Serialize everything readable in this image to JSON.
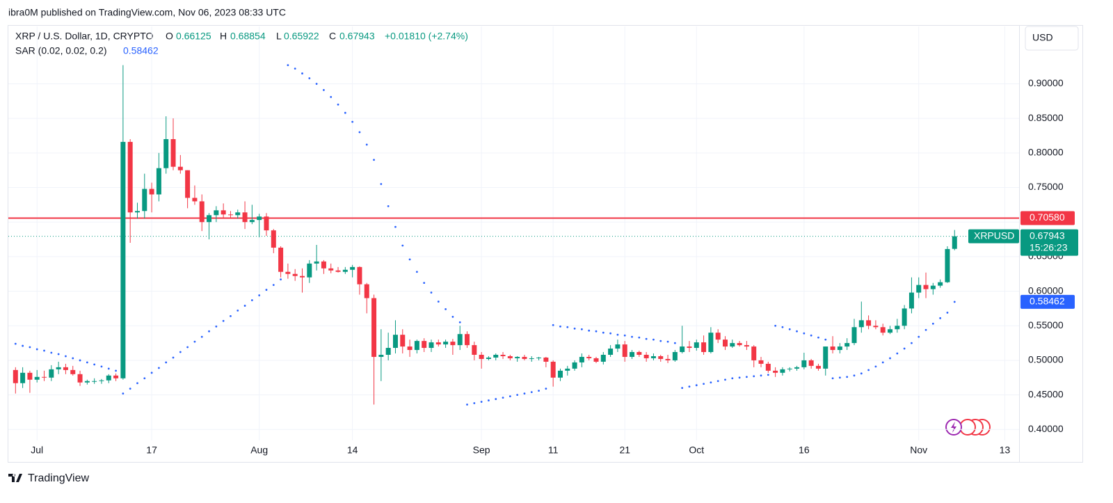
{
  "publisher": "ibra0M published on TradingView.com, Nov 06, 2023 08:33 UTC",
  "footer": "TradingView",
  "chart_data": {
    "type": "candlestick",
    "title": "XRP / U.S. Dollar, 1D, CRYPTO",
    "ohlc_labels": [
      "O",
      "H",
      "L",
      "C"
    ],
    "change": "+0.01810 (+2.74%)",
    "currency": "USD",
    "symbol": "XRPUSD",
    "countdown": "15:26:23",
    "up_color": "#089981",
    "down_color": "#f23645",
    "grid": true,
    "xlim": [
      "2023-06-27",
      "2023-11-15"
    ],
    "ylim": [
      0.352,
      0.983
    ],
    "yticks": [
      {
        "value": 0.4,
        "label": "0.40000"
      },
      {
        "value": 0.45,
        "label": "0.45000"
      },
      {
        "value": 0.5,
        "label": "0.50000"
      },
      {
        "value": 0.55,
        "label": "0.55000"
      },
      {
        "value": 0.6,
        "label": "0.60000"
      },
      {
        "value": 0.65,
        "label": "0.65000"
      },
      {
        "value": 0.7,
        "label": "0.70000"
      },
      {
        "value": 0.75,
        "label": "0.75000"
      },
      {
        "value": 0.8,
        "label": "0.80000"
      },
      {
        "value": 0.85,
        "label": "0.85000"
      },
      {
        "value": 0.9,
        "label": "0.90000"
      }
    ],
    "xticks": [
      {
        "value": "2023-07-01",
        "label": "Jul"
      },
      {
        "value": "2023-07-17",
        "label": "17"
      },
      {
        "value": "2023-08-01",
        "label": "Aug"
      },
      {
        "value": "2023-08-14",
        "label": "14"
      },
      {
        "value": "2023-09-01",
        "label": "Sep"
      },
      {
        "value": "2023-09-11",
        "label": "11"
      },
      {
        "value": "2023-09-21",
        "label": "21"
      },
      {
        "value": "2023-10-01",
        "label": "Oct"
      },
      {
        "value": "2023-10-16",
        "label": "16"
      },
      {
        "value": "2023-11-01",
        "label": "Nov"
      },
      {
        "value": "2023-11-13",
        "label": "13"
      }
    ],
    "levels": [
      {
        "value": 0.7058,
        "label": "0.70580",
        "color": "#f23645"
      }
    ],
    "x": [
      "2023-06-28",
      "2023-06-29",
      "2023-06-30",
      "2023-07-01",
      "2023-07-02",
      "2023-07-03",
      "2023-07-04",
      "2023-07-05",
      "2023-07-06",
      "2023-07-07",
      "2023-07-08",
      "2023-07-09",
      "2023-07-10",
      "2023-07-11",
      "2023-07-12",
      "2023-07-13",
      "2023-07-14",
      "2023-07-15",
      "2023-07-16",
      "2023-07-17",
      "2023-07-18",
      "2023-07-19",
      "2023-07-20",
      "2023-07-21",
      "2023-07-22",
      "2023-07-23",
      "2023-07-24",
      "2023-07-25",
      "2023-07-26",
      "2023-07-27",
      "2023-07-28",
      "2023-07-29",
      "2023-07-30",
      "2023-07-31",
      "2023-08-01",
      "2023-08-02",
      "2023-08-03",
      "2023-08-04",
      "2023-08-05",
      "2023-08-06",
      "2023-08-07",
      "2023-08-08",
      "2023-08-09",
      "2023-08-10",
      "2023-08-11",
      "2023-08-12",
      "2023-08-13",
      "2023-08-14",
      "2023-08-15",
      "2023-08-16",
      "2023-08-17",
      "2023-08-18",
      "2023-08-19",
      "2023-08-20",
      "2023-08-21",
      "2023-08-22",
      "2023-08-23",
      "2023-08-24",
      "2023-08-25",
      "2023-08-26",
      "2023-08-27",
      "2023-08-28",
      "2023-08-29",
      "2023-08-30",
      "2023-08-31",
      "2023-09-01",
      "2023-09-02",
      "2023-09-03",
      "2023-09-04",
      "2023-09-05",
      "2023-09-06",
      "2023-09-07",
      "2023-09-08",
      "2023-09-09",
      "2023-09-10",
      "2023-09-11",
      "2023-09-12",
      "2023-09-13",
      "2023-09-14",
      "2023-09-15",
      "2023-09-16",
      "2023-09-17",
      "2023-09-18",
      "2023-09-19",
      "2023-09-20",
      "2023-09-21",
      "2023-09-22",
      "2023-09-23",
      "2023-09-24",
      "2023-09-25",
      "2023-09-26",
      "2023-09-27",
      "2023-09-28",
      "2023-09-29",
      "2023-09-30",
      "2023-10-01",
      "2023-10-02",
      "2023-10-03",
      "2023-10-04",
      "2023-10-05",
      "2023-10-06",
      "2023-10-07",
      "2023-10-08",
      "2023-10-09",
      "2023-10-10",
      "2023-10-11",
      "2023-10-12",
      "2023-10-13",
      "2023-10-14",
      "2023-10-15",
      "2023-10-16",
      "2023-10-17",
      "2023-10-18",
      "2023-10-19",
      "2023-10-20",
      "2023-10-21",
      "2023-10-22",
      "2023-10-23",
      "2023-10-24",
      "2023-10-25",
      "2023-10-26",
      "2023-10-27",
      "2023-10-28",
      "2023-10-29",
      "2023-10-30",
      "2023-10-31",
      "2023-11-01",
      "2023-11-02",
      "2023-11-03",
      "2023-11-04",
      "2023-11-05",
      "2023-11-06"
    ],
    "ohlc": [
      [
        0.486,
        0.49,
        0.452,
        0.467
      ],
      [
        0.467,
        0.49,
        0.46,
        0.482
      ],
      [
        0.482,
        0.485,
        0.453,
        0.472
      ],
      [
        0.472,
        0.486,
        0.468,
        0.476
      ],
      [
        0.476,
        0.485,
        0.47,
        0.475
      ],
      [
        0.475,
        0.493,
        0.47,
        0.487
      ],
      [
        0.487,
        0.498,
        0.48,
        0.49
      ],
      [
        0.49,
        0.495,
        0.48,
        0.486
      ],
      [
        0.486,
        0.492,
        0.478,
        0.48
      ],
      [
        0.48,
        0.485,
        0.463,
        0.468
      ],
      [
        0.468,
        0.472,
        0.465,
        0.47
      ],
      [
        0.47,
        0.474,
        0.466,
        0.47
      ],
      [
        0.47,
        0.473,
        0.466,
        0.471
      ],
      [
        0.471,
        0.48,
        0.467,
        0.478
      ],
      [
        0.478,
        0.481,
        0.47,
        0.474
      ],
      [
        0.474,
        0.927,
        0.472,
        0.816
      ],
      [
        0.816,
        0.82,
        0.67,
        0.714
      ],
      [
        0.714,
        0.728,
        0.705,
        0.716
      ],
      [
        0.716,
        0.77,
        0.705,
        0.748
      ],
      [
        0.748,
        0.757,
        0.714,
        0.74
      ],
      [
        0.74,
        0.8,
        0.73,
        0.778
      ],
      [
        0.778,
        0.853,
        0.77,
        0.82
      ],
      [
        0.82,
        0.85,
        0.775,
        0.78
      ],
      [
        0.78,
        0.797,
        0.77,
        0.775
      ],
      [
        0.775,
        0.775,
        0.72,
        0.735
      ],
      [
        0.735,
        0.753,
        0.725,
        0.73
      ],
      [
        0.73,
        0.74,
        0.687,
        0.7
      ],
      [
        0.7,
        0.713,
        0.675,
        0.71
      ],
      [
        0.71,
        0.723,
        0.7,
        0.717
      ],
      [
        0.717,
        0.727,
        0.705,
        0.711
      ],
      [
        0.711,
        0.716,
        0.705,
        0.71
      ],
      [
        0.71,
        0.718,
        0.705,
        0.714
      ],
      [
        0.714,
        0.73,
        0.69,
        0.7
      ],
      [
        0.7,
        0.725,
        0.697,
        0.703
      ],
      [
        0.703,
        0.712,
        0.678,
        0.708
      ],
      [
        0.708,
        0.713,
        0.68,
        0.688
      ],
      [
        0.688,
        0.69,
        0.655,
        0.663
      ],
      [
        0.663,
        0.665,
        0.62,
        0.628
      ],
      [
        0.628,
        0.64,
        0.618,
        0.625
      ],
      [
        0.625,
        0.632,
        0.615,
        0.622
      ],
      [
        0.622,
        0.633,
        0.598,
        0.62
      ],
      [
        0.62,
        0.645,
        0.612,
        0.64
      ],
      [
        0.64,
        0.667,
        0.63,
        0.643
      ],
      [
        0.643,
        0.645,
        0.625,
        0.633
      ],
      [
        0.633,
        0.64,
        0.626,
        0.63
      ],
      [
        0.63,
        0.635,
        0.627,
        0.628
      ],
      [
        0.628,
        0.635,
        0.625,
        0.631
      ],
      [
        0.631,
        0.638,
        0.62,
        0.635
      ],
      [
        0.635,
        0.636,
        0.595,
        0.61
      ],
      [
        0.61,
        0.612,
        0.568,
        0.59
      ],
      [
        0.59,
        0.595,
        0.436,
        0.505
      ],
      [
        0.505,
        0.545,
        0.47,
        0.508
      ],
      [
        0.508,
        0.54,
        0.5,
        0.518
      ],
      [
        0.518,
        0.558,
        0.51,
        0.537
      ],
      [
        0.537,
        0.545,
        0.51,
        0.52
      ],
      [
        0.52,
        0.53,
        0.505,
        0.515
      ],
      [
        0.515,
        0.53,
        0.51,
        0.528
      ],
      [
        0.528,
        0.532,
        0.512,
        0.518
      ],
      [
        0.518,
        0.53,
        0.512,
        0.526
      ],
      [
        0.526,
        0.53,
        0.52,
        0.523
      ],
      [
        0.523,
        0.53,
        0.518,
        0.527
      ],
      [
        0.527,
        0.531,
        0.508,
        0.522
      ],
      [
        0.522,
        0.55,
        0.515,
        0.538
      ],
      [
        0.538,
        0.542,
        0.518,
        0.522
      ],
      [
        0.522,
        0.527,
        0.5,
        0.508
      ],
      [
        0.508,
        0.512,
        0.488,
        0.502
      ],
      [
        0.502,
        0.506,
        0.5,
        0.504
      ],
      [
        0.504,
        0.51,
        0.5,
        0.508
      ],
      [
        0.508,
        0.512,
        0.502,
        0.506
      ],
      [
        0.506,
        0.508,
        0.5,
        0.503
      ],
      [
        0.503,
        0.506,
        0.498,
        0.505
      ],
      [
        0.505,
        0.508,
        0.5,
        0.502
      ],
      [
        0.502,
        0.506,
        0.498,
        0.503
      ],
      [
        0.503,
        0.505,
        0.5,
        0.504
      ],
      [
        0.504,
        0.505,
        0.49,
        0.498
      ],
      [
        0.498,
        0.5,
        0.462,
        0.475
      ],
      [
        0.475,
        0.488,
        0.47,
        0.485
      ],
      [
        0.485,
        0.492,
        0.478,
        0.488
      ],
      [
        0.488,
        0.5,
        0.485,
        0.497
      ],
      [
        0.497,
        0.51,
        0.49,
        0.505
      ],
      [
        0.505,
        0.508,
        0.5,
        0.503
      ],
      [
        0.503,
        0.505,
        0.496,
        0.498
      ],
      [
        0.498,
        0.512,
        0.494,
        0.508
      ],
      [
        0.508,
        0.522,
        0.505,
        0.517
      ],
      [
        0.517,
        0.53,
        0.512,
        0.523
      ],
      [
        0.523,
        0.528,
        0.498,
        0.505
      ],
      [
        0.505,
        0.515,
        0.502,
        0.512
      ],
      [
        0.512,
        0.514,
        0.505,
        0.508
      ],
      [
        0.508,
        0.512,
        0.498,
        0.503
      ],
      [
        0.503,
        0.51,
        0.5,
        0.506
      ],
      [
        0.506,
        0.508,
        0.498,
        0.502
      ],
      [
        0.502,
        0.508,
        0.496,
        0.5
      ],
      [
        0.5,
        0.515,
        0.498,
        0.512
      ],
      [
        0.512,
        0.55,
        0.51,
        0.52
      ],
      [
        0.52,
        0.528,
        0.512,
        0.518
      ],
      [
        0.518,
        0.53,
        0.514,
        0.526
      ],
      [
        0.526,
        0.536,
        0.508,
        0.512
      ],
      [
        0.512,
        0.548,
        0.51,
        0.54
      ],
      [
        0.54,
        0.545,
        0.525,
        0.53
      ],
      [
        0.53,
        0.535,
        0.515,
        0.52
      ],
      [
        0.52,
        0.53,
        0.518,
        0.525
      ],
      [
        0.525,
        0.528,
        0.52,
        0.522
      ],
      [
        0.522,
        0.528,
        0.515,
        0.52
      ],
      [
        0.52,
        0.522,
        0.49,
        0.5
      ],
      [
        0.5,
        0.505,
        0.49,
        0.495
      ],
      [
        0.495,
        0.498,
        0.482,
        0.485
      ],
      [
        0.485,
        0.49,
        0.476,
        0.482
      ],
      [
        0.482,
        0.49,
        0.478,
        0.487
      ],
      [
        0.487,
        0.49,
        0.484,
        0.488
      ],
      [
        0.488,
        0.492,
        0.485,
        0.49
      ],
      [
        0.49,
        0.511,
        0.487,
        0.5
      ],
      [
        0.5,
        0.502,
        0.488,
        0.492
      ],
      [
        0.492,
        0.495,
        0.485,
        0.488
      ],
      [
        0.488,
        0.52,
        0.478,
        0.52
      ],
      [
        0.52,
        0.535,
        0.51,
        0.515
      ],
      [
        0.515,
        0.525,
        0.51,
        0.52
      ],
      [
        0.52,
        0.532,
        0.515,
        0.525
      ],
      [
        0.525,
        0.56,
        0.522,
        0.548
      ],
      [
        0.548,
        0.585,
        0.54,
        0.558
      ],
      [
        0.558,
        0.565,
        0.545,
        0.55
      ],
      [
        0.55,
        0.558,
        0.545,
        0.548
      ],
      [
        0.548,
        0.553,
        0.536,
        0.54
      ],
      [
        0.54,
        0.55,
        0.538,
        0.545
      ],
      [
        0.545,
        0.56,
        0.54,
        0.55
      ],
      [
        0.55,
        0.58,
        0.545,
        0.575
      ],
      [
        0.575,
        0.62,
        0.568,
        0.598
      ],
      [
        0.598,
        0.62,
        0.59,
        0.609
      ],
      [
        0.609,
        0.627,
        0.59,
        0.603
      ],
      [
        0.603,
        0.612,
        0.595,
        0.608
      ],
      [
        0.608,
        0.617,
        0.605,
        0.613
      ],
      [
        0.613,
        0.665,
        0.612,
        0.661
      ],
      [
        0.66125,
        0.68854,
        0.65922,
        0.67943
      ]
    ],
    "sar": {
      "name": "SAR (0.02, 0.02, 0.2)",
      "color": "#2962ff",
      "values": [
        0.524,
        0.521,
        0.519,
        0.516,
        0.514,
        0.511,
        0.509,
        0.506,
        0.503,
        0.5,
        0.497,
        0.494,
        0.491,
        0.488,
        0.485,
        0.452,
        0.459,
        0.467,
        0.474,
        0.482,
        0.489,
        0.497,
        0.504,
        0.512,
        0.519,
        0.527,
        0.534,
        0.542,
        0.549,
        0.557,
        0.564,
        0.572,
        0.579,
        0.587,
        0.594,
        0.602,
        0.609,
        0.617,
        0.927,
        0.922,
        0.915,
        0.908,
        0.9,
        0.891,
        0.881,
        0.87,
        0.858,
        0.845,
        0.83,
        0.812,
        0.79,
        0.755,
        0.723,
        0.693,
        0.666,
        0.646,
        0.628,
        0.612,
        0.598,
        0.585,
        0.574,
        0.563,
        0.555,
        0.436,
        0.438,
        0.44,
        0.442,
        0.444,
        0.446,
        0.448,
        0.45,
        0.452,
        0.454,
        0.456,
        0.459,
        0.551,
        0.549,
        0.548,
        0.546,
        0.545,
        0.543,
        0.542,
        0.54,
        0.539,
        0.537,
        0.536,
        0.534,
        0.533,
        0.531,
        0.53,
        0.528,
        0.527,
        0.525,
        0.46,
        0.462,
        0.464,
        0.466,
        0.468,
        0.47,
        0.472,
        0.474,
        0.475,
        0.476,
        0.477,
        0.478,
        0.479,
        0.55,
        0.548,
        0.545,
        0.542,
        0.539,
        0.536,
        0.533,
        0.53,
        0.474,
        0.475,
        0.476,
        0.478,
        0.481,
        0.486,
        0.491,
        0.497,
        0.503,
        0.51,
        0.517,
        0.525,
        0.534,
        0.544,
        0.553,
        0.561,
        0.569,
        0.58462
      ]
    }
  }
}
